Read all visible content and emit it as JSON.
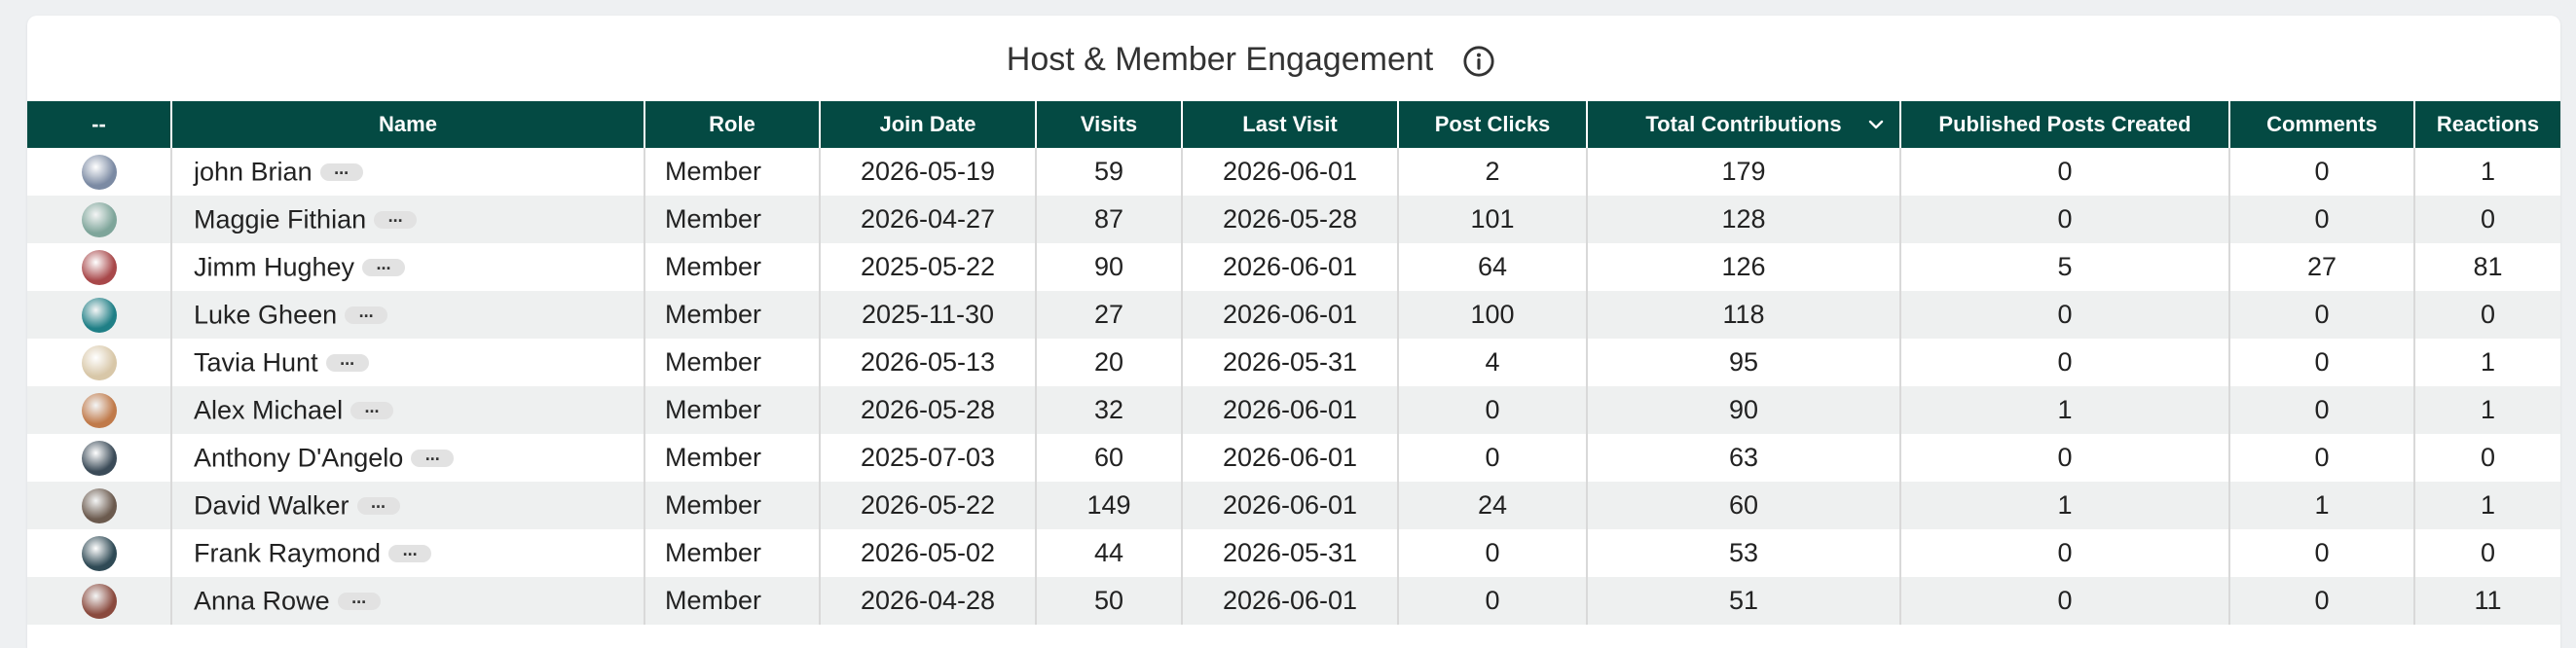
{
  "header": {
    "title": "Host & Member Engagement",
    "info_icon": "info-circle-icon"
  },
  "columns": {
    "avatar": "--",
    "name": "Name",
    "role": "Role",
    "join_date": "Join Date",
    "visits": "Visits",
    "last_visit": "Last Visit",
    "post_clicks": "Post Clicks",
    "total_contributions": "Total Contributions",
    "published_posts": "Published Posts Created",
    "comments": "Comments",
    "reactions": "Reactions"
  },
  "sort_icon": "chevron-down-icon",
  "more_label": "...",
  "rows": [
    {
      "avatar_color": "#7b8aa3",
      "name": "john Brian",
      "role": "Member",
      "join_date": "2026-05-19",
      "visits": "59",
      "last_visit": "2026-06-01",
      "post_clicks": "2",
      "total_contributions": "179",
      "published_posts": "0",
      "comments": "0",
      "reactions": "1"
    },
    {
      "avatar_color": "#7ea59a",
      "name": "Maggie Fithian",
      "role": "Member",
      "join_date": "2026-04-27",
      "visits": "87",
      "last_visit": "2026-05-28",
      "post_clicks": "101",
      "total_contributions": "128",
      "published_posts": "0",
      "comments": "0",
      "reactions": "0"
    },
    {
      "avatar_color": "#a8484a",
      "name": "Jimm Hughey",
      "role": "Member",
      "join_date": "2025-05-22",
      "visits": "90",
      "last_visit": "2026-06-01",
      "post_clicks": "64",
      "total_contributions": "126",
      "published_posts": "5",
      "comments": "27",
      "reactions": "81"
    },
    {
      "avatar_color": "#1f7f86",
      "name": "Luke Gheen",
      "role": "Member",
      "join_date": "2025-11-30",
      "visits": "27",
      "last_visit": "2026-06-01",
      "post_clicks": "100",
      "total_contributions": "118",
      "published_posts": "0",
      "comments": "0",
      "reactions": "0"
    },
    {
      "avatar_color": "#d8c7a8",
      "name": "Tavia Hunt",
      "role": "Member",
      "join_date": "2026-05-13",
      "visits": "20",
      "last_visit": "2026-05-31",
      "post_clicks": "4",
      "total_contributions": "95",
      "published_posts": "0",
      "comments": "0",
      "reactions": "1"
    },
    {
      "avatar_color": "#c07a4a",
      "name": "Alex Michael",
      "role": "Member",
      "join_date": "2026-05-28",
      "visits": "32",
      "last_visit": "2026-06-01",
      "post_clicks": "0",
      "total_contributions": "90",
      "published_posts": "1",
      "comments": "0",
      "reactions": "1"
    },
    {
      "avatar_color": "#3b4b58",
      "name": "Anthony D'Angelo",
      "role": "Member",
      "join_date": "2025-07-03",
      "visits": "60",
      "last_visit": "2026-06-01",
      "post_clicks": "0",
      "total_contributions": "63",
      "published_posts": "0",
      "comments": "0",
      "reactions": "0"
    },
    {
      "avatar_color": "#6b5a4e",
      "name": "David Walker",
      "role": "Member",
      "join_date": "2026-05-22",
      "visits": "149",
      "last_visit": "2026-06-01",
      "post_clicks": "24",
      "total_contributions": "60",
      "published_posts": "1",
      "comments": "1",
      "reactions": "1"
    },
    {
      "avatar_color": "#2f4a55",
      "name": "Frank Raymond",
      "role": "Member",
      "join_date": "2026-05-02",
      "visits": "44",
      "last_visit": "2026-05-31",
      "post_clicks": "0",
      "total_contributions": "53",
      "published_posts": "0",
      "comments": "0",
      "reactions": "0"
    },
    {
      "avatar_color": "#8a4a3e",
      "name": "Anna Rowe",
      "role": "Member",
      "join_date": "2026-04-28",
      "visits": "50",
      "last_visit": "2026-06-01",
      "post_clicks": "0",
      "total_contributions": "51",
      "published_posts": "0",
      "comments": "0",
      "reactions": "11"
    }
  ]
}
